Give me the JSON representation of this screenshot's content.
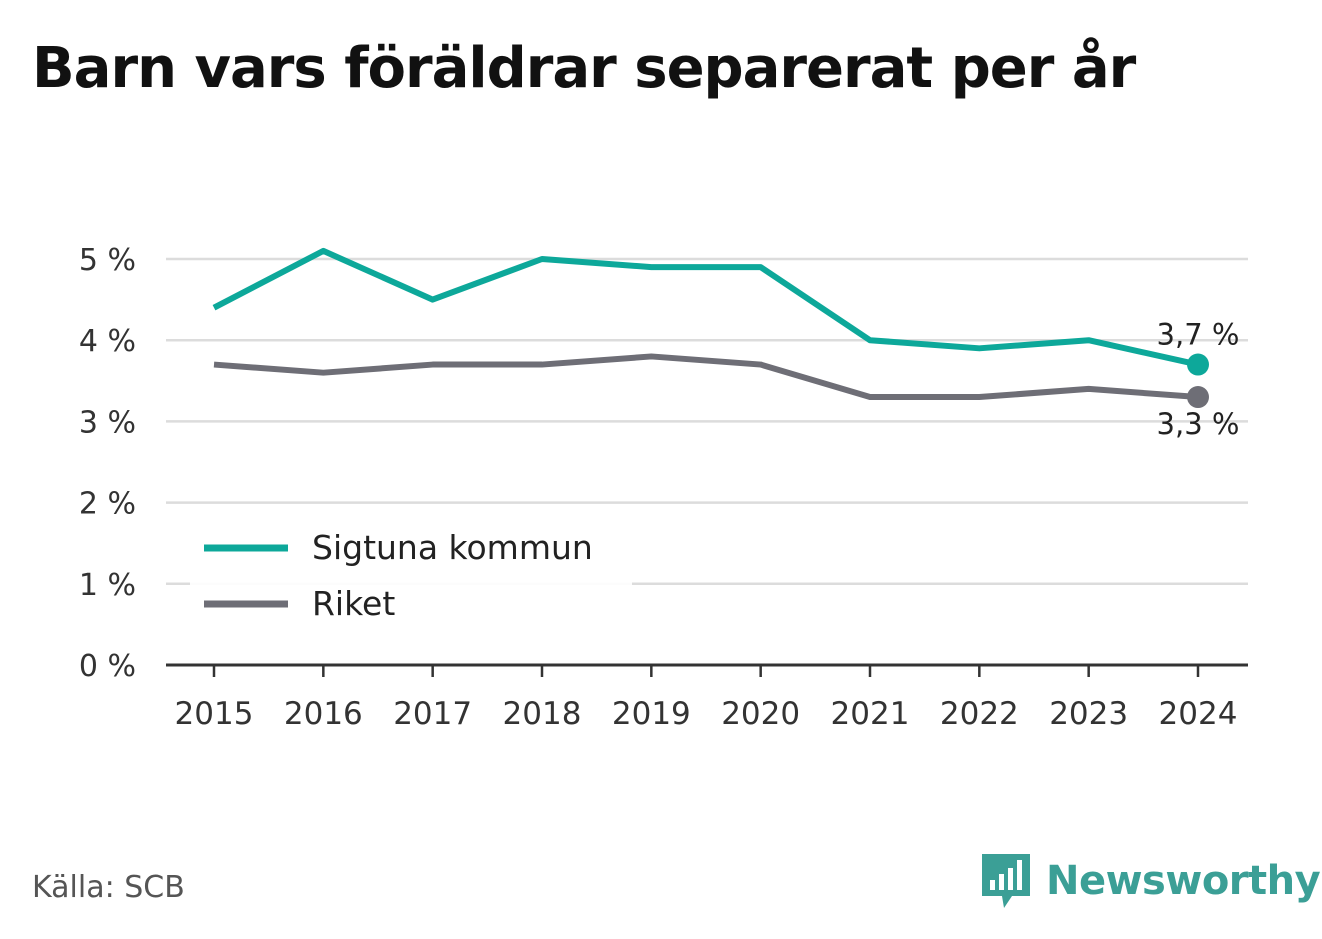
{
  "title": "Barn vars föräldrar separerat per år",
  "source": "Källa: SCB",
  "brand": {
    "name": "Newsworthy",
    "icon": "bar-chart-speech-bubble-icon",
    "color": "#3b9f96"
  },
  "chart_data": {
    "type": "line",
    "x": [
      "2015",
      "2016",
      "2017",
      "2018",
      "2019",
      "2020",
      "2021",
      "2022",
      "2023",
      "2024"
    ],
    "y_ticks": [
      0,
      1,
      2,
      3,
      4,
      5
    ],
    "y_tick_labels": [
      "0 %",
      "1 %",
      "2 %",
      "3 %",
      "4 %",
      "5 %"
    ],
    "ylim": [
      0,
      5
    ],
    "grid": true,
    "legend_position": "bottom-left",
    "series": [
      {
        "name": "Sigtuna kommun",
        "color": "#0da89a",
        "values": [
          4.4,
          5.1,
          4.5,
          5.0,
          4.9,
          4.9,
          4.0,
          3.9,
          4.0,
          3.7
        ],
        "end_label": "3,7 %"
      },
      {
        "name": "Riket",
        "color": "#6e6e76",
        "values": [
          3.7,
          3.6,
          3.7,
          3.7,
          3.8,
          3.7,
          3.3,
          3.3,
          3.4,
          3.3
        ],
        "end_label": "3,3 %"
      }
    ]
  }
}
